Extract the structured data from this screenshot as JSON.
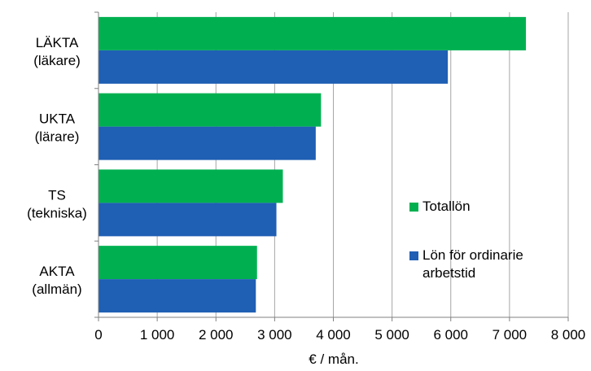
{
  "chart_data": {
    "type": "bar",
    "orientation": "horizontal",
    "categories": [
      [
        "LÄKTA",
        "(läkare)"
      ],
      [
        "UKTA",
        "(lärare)"
      ],
      [
        "TS",
        "(tekniska)"
      ],
      [
        "AKTA",
        "(allmän)"
      ]
    ],
    "series": [
      {
        "name": "Totallön",
        "color": "#00b050",
        "values": [
          7280,
          3790,
          3140,
          2700
        ]
      },
      {
        "name": "Lön för ordinarie arbetstid",
        "name_lines": [
          "Lön för ordinarie",
          "arbetstid"
        ],
        "color": "#1f5fb4",
        "values": [
          5950,
          3700,
          3030,
          2680
        ]
      }
    ],
    "xlabel": "€ / mån.",
    "xlim": [
      0,
      8000
    ],
    "xticks": [
      0,
      1000,
      2000,
      3000,
      4000,
      5000,
      6000,
      7000,
      8000
    ],
    "xtick_labels": [
      "0",
      "1 000",
      "2 000",
      "3 000",
      "4 000",
      "5 000",
      "6 000",
      "7 000",
      "8 000"
    ],
    "grid": "vertical",
    "grid_color": "#a6a6a6",
    "legend_position": "right"
  }
}
